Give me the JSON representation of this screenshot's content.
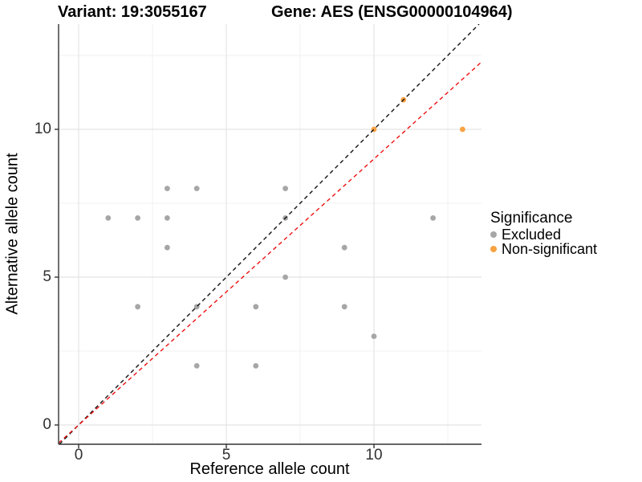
{
  "titles": {
    "left": "Variant: 19:3055167",
    "right": "Gene: AES (ENSG00000104964)"
  },
  "legend": {
    "title": "Significance",
    "items": [
      {
        "label": "Excluded",
        "color": "#A6A6A6"
      },
      {
        "label": "Non-significant",
        "color": "#F9A242"
      }
    ]
  },
  "chart_data": {
    "type": "scatter",
    "title": "Variant: 19:3055167 | Gene: AES (ENSG00000104964)",
    "xlabel": "Reference allele count",
    "ylabel": "Alternative allele count",
    "xlim": [
      -0.68,
      13.64
    ],
    "ylim": [
      -0.63,
      13.56
    ],
    "x_ticks": [
      0,
      5,
      10
    ],
    "y_ticks": [
      0,
      5,
      10
    ],
    "grid": {
      "major": [
        0,
        5,
        10
      ],
      "minor": [
        2.5,
        7.5,
        12.5
      ],
      "major_color": "#E4E4E4",
      "minor_color": "#F0F0F0"
    },
    "series": [
      {
        "name": "Excluded",
        "color": "#A6A6A6",
        "points": [
          [
            1,
            7
          ],
          [
            2,
            7
          ],
          [
            3,
            7
          ],
          [
            3,
            8
          ],
          [
            3,
            6
          ],
          [
            4,
            8
          ],
          [
            2,
            4
          ],
          [
            4,
            4
          ],
          [
            6,
            4
          ],
          [
            9,
            4
          ],
          [
            4,
            2
          ],
          [
            6,
            2
          ],
          [
            7,
            5
          ],
          [
            7,
            7
          ],
          [
            7,
            8
          ],
          [
            9,
            6
          ],
          [
            10,
            3
          ],
          [
            12,
            7
          ]
        ]
      },
      {
        "name": "Non-significant",
        "color": "#F9A242",
        "points": [
          [
            10,
            10
          ],
          [
            11,
            11
          ],
          [
            13,
            10
          ]
        ]
      }
    ],
    "reference_lines": [
      {
        "name": "identity-line",
        "slope": 1.0,
        "intercept": 0,
        "color": "#111111",
        "style": "dashed"
      },
      {
        "name": "fit-line",
        "slope": 0.9,
        "intercept": 0,
        "color": "#EE1111",
        "style": "dashed"
      }
    ],
    "legend_position": "right",
    "axis_color": "#333333"
  }
}
